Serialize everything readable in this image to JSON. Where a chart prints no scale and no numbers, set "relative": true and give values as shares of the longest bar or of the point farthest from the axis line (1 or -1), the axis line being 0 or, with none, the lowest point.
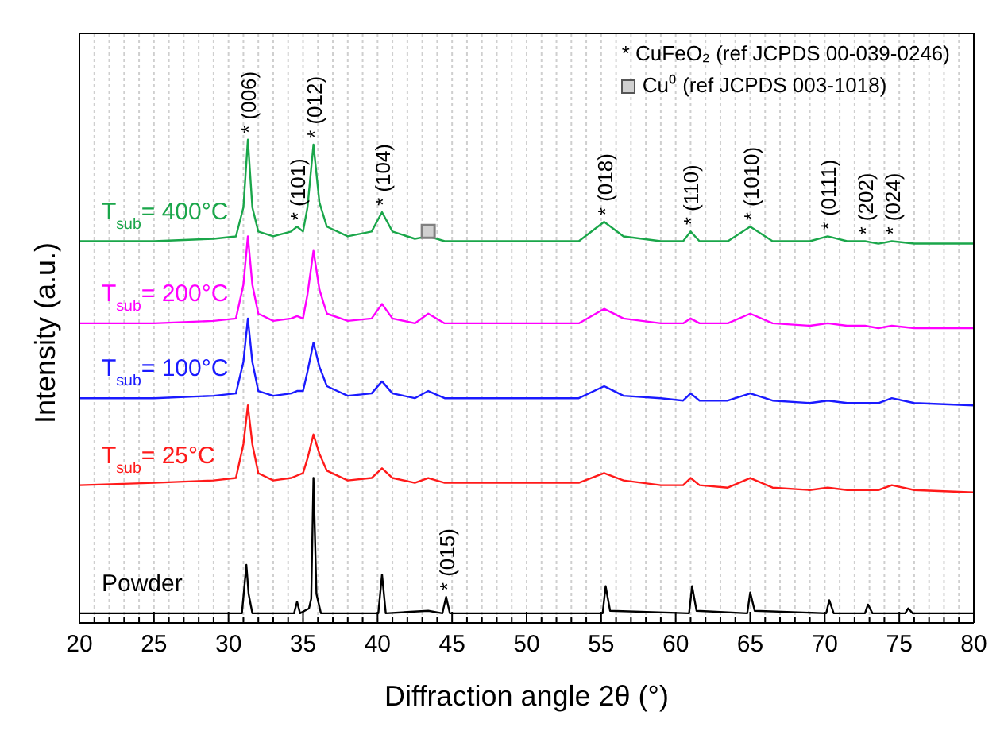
{
  "chart_data": {
    "type": "line",
    "relative": true,
    "xlabel": "Diffraction angle 2θ (°)",
    "ylabel": "Intensity (a.u.)",
    "xlim": [
      20,
      80
    ],
    "xticks": [
      20,
      {
        "value": 21,
        "label": null
      },
      {
        "value": 22,
        "label": null
      },
      {
        "value": 23,
        "label": null
      },
      {
        "value": 24,
        "label": null
      },
      25,
      {
        "value": 26,
        "label": null
      },
      {
        "value": 27,
        "label": null
      },
      {
        "value": 28,
        "label": null
      },
      {
        "value": 29,
        "label": null
      },
      30,
      {
        "value": 31,
        "label": null
      },
      {
        "value": 32,
        "label": null
      },
      {
        "value": 33,
        "label": null
      },
      {
        "value": 34,
        "label": null
      },
      35,
      {
        "value": 36,
        "label": null
      },
      {
        "value": 37,
        "label": null
      },
      {
        "value": 38,
        "label": null
      },
      {
        "value": 39,
        "label": null
      },
      40,
      {
        "value": 41,
        "label": null
      },
      {
        "value": 42,
        "label": null
      },
      {
        "value": 43,
        "label": null
      },
      {
        "value": 44,
        "label": null
      },
      45,
      {
        "value": 46,
        "label": null
      },
      {
        "value": 47,
        "label": null
      },
      {
        "value": 48,
        "label": null
      },
      {
        "value": 49,
        "label": null
      },
      50,
      {
        "value": 51,
        "label": null
      },
      {
        "value": 52,
        "label": null
      },
      {
        "value": 53,
        "label": null
      },
      {
        "value": 54,
        "label": null
      },
      55,
      {
        "value": 56,
        "label": null
      },
      {
        "value": 57,
        "label": null
      },
      {
        "value": 58,
        "label": null
      },
      {
        "value": 59,
        "label": null
      },
      60,
      {
        "value": 61,
        "label": null
      },
      {
        "value": 62,
        "label": null
      },
      {
        "value": 63,
        "label": null
      },
      {
        "value": 64,
        "label": null
      },
      65,
      {
        "value": 66,
        "label": null
      },
      {
        "value": 67,
        "label": null
      },
      {
        "value": 68,
        "label": null
      },
      {
        "value": 69,
        "label": null
      },
      70,
      {
        "value": 71,
        "label": null
      },
      {
        "value": 72,
        "label": null
      },
      {
        "value": 73,
        "label": null
      },
      {
        "value": 74,
        "label": null
      },
      75,
      {
        "value": 76,
        "label": null
      },
      {
        "value": 77,
        "label": null
      },
      {
        "value": 78,
        "label": null
      },
      {
        "value": 79,
        "label": null
      },
      80
    ],
    "grid": "x",
    "marker": "none",
    "x": [
      20,
      25,
      29,
      30.5,
      31.0,
      31.3,
      31.6,
      32,
      33,
      34.2,
      34.6,
      35.0,
      35.3,
      35.7,
      36.1,
      36.6,
      38,
      39.6,
      40.3,
      41,
      42.5,
      43.4,
      44.5,
      47,
      50,
      53.5,
      55.2,
      56.5,
      59,
      60.5,
      61,
      61.6,
      63.5,
      65,
      66.5,
      69,
      70.2,
      71.5,
      72.7,
      73.6,
      74.5,
      76,
      80
    ],
    "series": [
      {
        "name": "T$_{sub}$= 400°C",
        "color": "#1aa64a",
        "values": [
          0.79,
          0.79,
          0.795,
          0.8,
          0.86,
          1.0,
          0.86,
          0.81,
          0.8,
          0.81,
          0.82,
          0.81,
          0.86,
          0.99,
          0.87,
          0.82,
          0.8,
          0.81,
          0.85,
          0.81,
          0.795,
          0.8,
          0.79,
          0.79,
          0.79,
          0.79,
          0.83,
          0.8,
          0.79,
          0.79,
          0.81,
          0.79,
          0.79,
          0.82,
          0.79,
          0.79,
          0.8,
          0.79,
          0.79,
          0.785,
          0.79,
          0.785,
          0.785
        ]
      },
      {
        "name": "T$_{sub}$= 200°C",
        "color": "#ff00ff",
        "values": [
          0.62,
          0.62,
          0.625,
          0.63,
          0.7,
          0.8,
          0.7,
          0.64,
          0.625,
          0.63,
          0.635,
          0.63,
          0.68,
          0.77,
          0.69,
          0.64,
          0.625,
          0.63,
          0.66,
          0.63,
          0.62,
          0.64,
          0.62,
          0.62,
          0.62,
          0.62,
          0.65,
          0.63,
          0.62,
          0.62,
          0.63,
          0.62,
          0.62,
          0.64,
          0.62,
          0.615,
          0.62,
          0.615,
          0.615,
          0.61,
          0.615,
          0.61,
          0.61
        ]
      },
      {
        "name": "T$_{sub}$= 100°C",
        "color": "#1a1aff",
        "values": [
          0.465,
          0.465,
          0.47,
          0.475,
          0.54,
          0.63,
          0.54,
          0.48,
          0.47,
          0.475,
          0.48,
          0.48,
          0.52,
          0.58,
          0.53,
          0.49,
          0.47,
          0.475,
          0.5,
          0.475,
          0.465,
          0.48,
          0.465,
          0.465,
          0.465,
          0.465,
          0.49,
          0.47,
          0.465,
          0.46,
          0.475,
          0.46,
          0.46,
          0.475,
          0.46,
          0.455,
          0.46,
          0.455,
          0.455,
          0.455,
          0.465,
          0.455,
          0.45
        ]
      },
      {
        "name": "T$_{sub}$= 25°C",
        "color": "#ff1a1a",
        "values": [
          0.285,
          0.29,
          0.295,
          0.3,
          0.37,
          0.45,
          0.37,
          0.31,
          0.295,
          0.3,
          0.305,
          0.31,
          0.34,
          0.39,
          0.35,
          0.315,
          0.295,
          0.3,
          0.32,
          0.3,
          0.29,
          0.3,
          0.29,
          0.29,
          0.29,
          0.29,
          0.31,
          0.295,
          0.285,
          0.285,
          0.3,
          0.285,
          0.28,
          0.3,
          0.28,
          0.275,
          0.28,
          0.275,
          0.275,
          0.275,
          0.285,
          0.275,
          0.27
        ]
      },
      {
        "name": "Powder",
        "color": "#000000",
        "x": [
          20,
          30.9,
          31.2,
          31.35,
          31.6,
          34.4,
          34.6,
          34.8,
          35.4,
          35.55,
          35.7,
          35.9,
          36.2,
          40.05,
          40.3,
          40.55,
          43.4,
          44.35,
          44.6,
          44.85,
          55.1,
          55.3,
          55.6,
          60.9,
          61.1,
          61.4,
          64.8,
          65,
          65.3,
          70.1,
          70.3,
          70.6,
          72.7,
          72.9,
          73.2,
          75.4,
          75.6,
          75.9,
          80
        ],
        "values": [
          0.02,
          0.02,
          0.12,
          0.06,
          0.02,
          0.02,
          0.044,
          0.02,
          0.03,
          0.05,
          0.3,
          0.06,
          0.02,
          0.02,
          0.1,
          0.02,
          0.025,
          0.02,
          0.054,
          0.02,
          0.02,
          0.076,
          0.025,
          0.02,
          0.076,
          0.025,
          0.02,
          0.063,
          0.025,
          0.02,
          0.047,
          0.02,
          0.02,
          0.038,
          0.02,
          0.02,
          0.03,
          0.02,
          0.02
        ]
      },
      {
        "type": "scatter",
        "marker": "square",
        "color": "#808080",
        "x": [
          43.4
        ],
        "values": [
          0.81
        ]
      }
    ],
    "annotations": [
      {
        "text": "* (006)",
        "x": 31.3,
        "y": 1.0
      },
      {
        "text": "* (101)",
        "x": 34.6,
        "y": 0.82
      },
      {
        "text": "* (012)",
        "x": 35.7,
        "y": 0.99
      },
      {
        "text": "* (104)",
        "x": 40.3,
        "y": 0.85
      },
      {
        "text": "* (015)",
        "x": 44.6,
        "y": 0.054
      },
      {
        "text": "* (018)",
        "x": 55.2,
        "y": 0.83
      },
      {
        "text": "* (110)",
        "x": 61,
        "y": 0.81
      },
      {
        "text": "* (1010)",
        "x": 65,
        "y": 0.82
      },
      {
        "text": "* (0111)",
        "x": 70.2,
        "y": 0.8
      },
      {
        "text": "* (202)",
        "x": 72.7,
        "y": 0.79
      },
      {
        "text": "* (024)",
        "x": 74.5,
        "y": 0.79
      },
      "* CuFeO₂ (ref JCPDS 00-039-0246)",
      "Cu⁰ (ref JCPDS 003-1018)"
    ]
  }
}
